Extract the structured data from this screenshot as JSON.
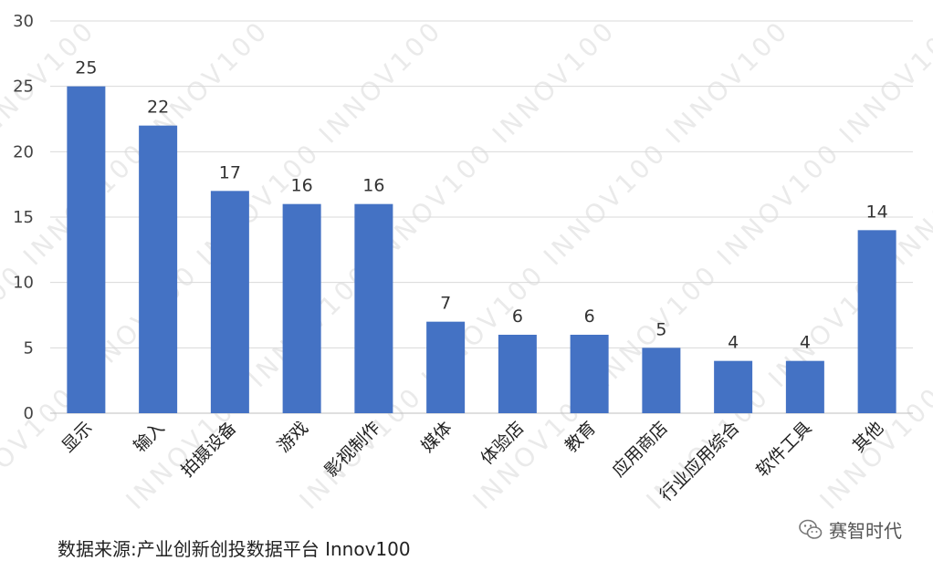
{
  "chart_data": {
    "type": "bar",
    "categories": [
      "显示",
      "输入",
      "拍摄设备",
      "游戏",
      "影视制作",
      "媒体",
      "体验店",
      "教育",
      "应用商店",
      "行业应用综合",
      "软件工具",
      "其他"
    ],
    "values": [
      25,
      22,
      17,
      16,
      16,
      7,
      6,
      6,
      5,
      4,
      4,
      14
    ],
    "ylim": [
      0,
      30
    ],
    "yticks": [
      0,
      5,
      10,
      15,
      20,
      25,
      30
    ],
    "bar_color": "#4472C4",
    "grid": true,
    "legend": "none"
  },
  "source_text": "数据来源:产业创新创投数据平台 Innov100",
  "watermark_text": "INNOV100",
  "brand": {
    "name": "赛智时代",
    "icon": "wechat-icon"
  }
}
